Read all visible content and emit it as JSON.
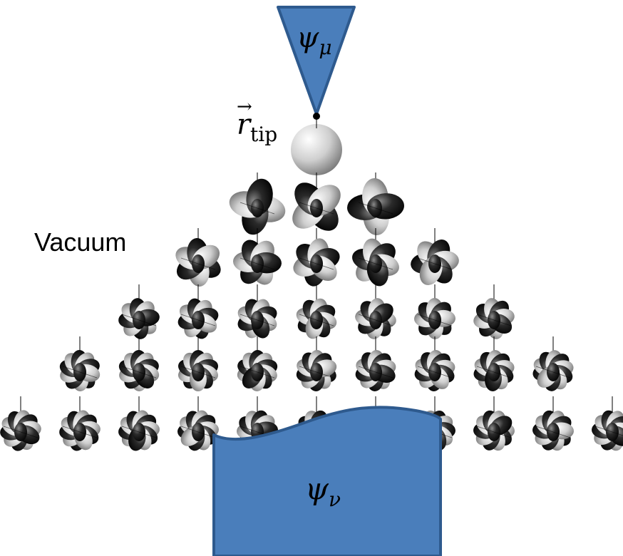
{
  "labels": {
    "tip_wavefunction": {
      "symbol": "ψ",
      "subscript": "μ"
    },
    "tip_position": {
      "vector": "r",
      "arrow": "→",
      "subscript": "tip"
    },
    "vacuum": "Vacuum",
    "sample_wavefunction": {
      "symbol": "ψ",
      "subscript": "ν"
    }
  },
  "orbital_rows": [
    {
      "l": 0,
      "count": 1
    },
    {
      "l": 1,
      "count": 3
    },
    {
      "l": 2,
      "count": 5
    },
    {
      "l": 3,
      "count": 7
    },
    {
      "l": 4,
      "count": 9
    },
    {
      "l": 5,
      "count": 11
    }
  ],
  "colors": {
    "region_fill": "#4a7ebb",
    "region_stroke": "#2e5a8e",
    "orbital_light": "#d9d9d9",
    "orbital_dark": "#1a1a1a"
  }
}
